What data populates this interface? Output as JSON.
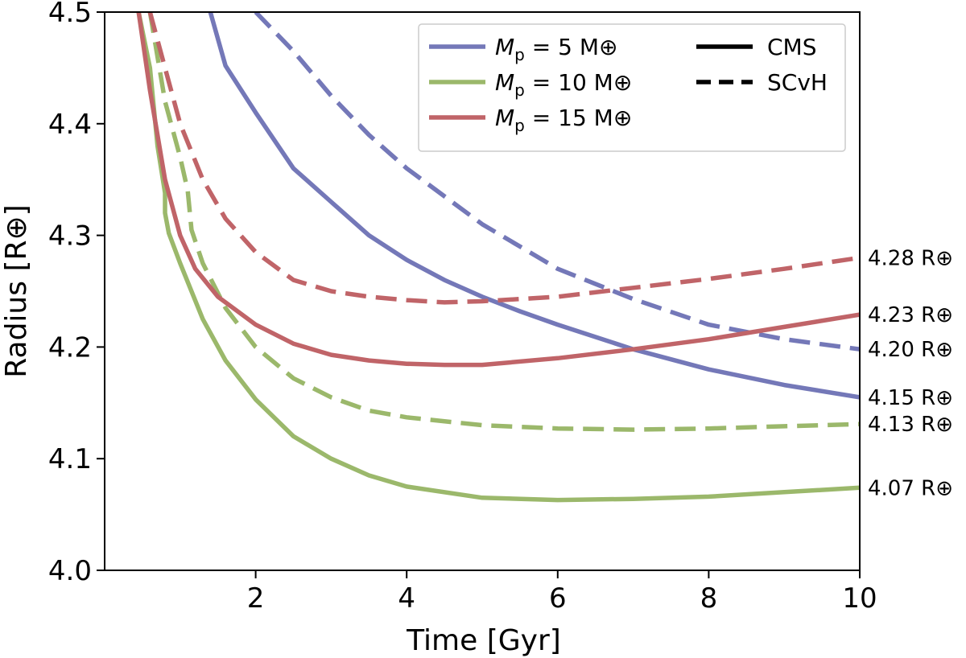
{
  "chart_data": {
    "type": "line",
    "title": "",
    "xlabel": "Time [Gyr]",
    "ylabel": "Radius [R⊕]",
    "xlim": [
      0,
      10
    ],
    "ylim": [
      4.0,
      4.5
    ],
    "xticks": [
      2,
      4,
      6,
      8,
      10
    ],
    "xtick_labels": [
      "2",
      "4",
      "6",
      "8",
      "10"
    ],
    "yticks": [
      4.0,
      4.1,
      4.2,
      4.3,
      4.4,
      4.5
    ],
    "ytick_labels": [
      "4.0",
      "4.1",
      "4.2",
      "4.3",
      "4.4",
      "4.5"
    ],
    "grid": false,
    "legend": {
      "placement": "top-right",
      "mass_entries": [
        {
          "prefix": "M",
          "subscript": "p",
          "text": " = 5 M⊕",
          "color": "#7478b8"
        },
        {
          "prefix": "M",
          "subscript": "p",
          "text": " = 10 M⊕",
          "color": "#9bb86b"
        },
        {
          "prefix": "M",
          "subscript": "p",
          "text": " = 15 M⊕",
          "color": "#c06468"
        }
      ],
      "style_entries": [
        {
          "label": "CMS",
          "style": "solid"
        },
        {
          "label": "SCvH",
          "style": "dashed"
        }
      ]
    },
    "series": [
      {
        "name": "Mp = 5 M⊕, CMS",
        "color": "#7478b8",
        "style": "solid",
        "x": [
          1.4,
          1.6,
          2.0,
          2.5,
          3.0,
          3.5,
          4.0,
          4.5,
          5.0,
          5.5,
          6.0,
          7.0,
          8.0,
          9.0,
          10.0
        ],
        "y": [
          4.5,
          4.452,
          4.41,
          4.36,
          4.33,
          4.3,
          4.278,
          4.26,
          4.245,
          4.232,
          4.22,
          4.198,
          4.18,
          4.166,
          4.155
        ],
        "end_label": "4.15 R⊕"
      },
      {
        "name": "Mp = 5 M⊕, SCvH",
        "color": "#7478b8",
        "style": "dashed",
        "x": [
          2.0,
          2.5,
          3.0,
          3.5,
          4.0,
          5.0,
          6.0,
          7.0,
          8.0,
          9.0,
          10.0
        ],
        "y": [
          4.5,
          4.465,
          4.425,
          4.39,
          4.36,
          4.31,
          4.27,
          4.243,
          4.22,
          4.207,
          4.198
        ],
        "end_label": "4.20 R⊕"
      },
      {
        "name": "Mp = 10 M⊕, CMS",
        "color": "#9bb86b",
        "style": "solid",
        "x": [
          0.45,
          0.6,
          0.7,
          0.8,
          0.8,
          0.85,
          1.0,
          1.3,
          1.6,
          2.0,
          2.5,
          3.0,
          3.5,
          4.0,
          5.0,
          6.0,
          7.0,
          8.0,
          9.0,
          10.0
        ],
        "y": [
          4.5,
          4.45,
          4.38,
          4.338,
          4.32,
          4.302,
          4.275,
          4.225,
          4.188,
          4.153,
          4.12,
          4.1,
          4.085,
          4.075,
          4.065,
          4.063,
          4.064,
          4.066,
          4.07,
          4.074
        ],
        "end_label": "4.07 R⊕"
      },
      {
        "name": "Mp = 10 M⊕, SCvH",
        "color": "#9bb86b",
        "style": "dashed",
        "x": [
          0.6,
          0.8,
          1.0,
          1.1,
          1.15,
          1.3,
          1.6,
          2.0,
          2.5,
          3.0,
          3.5,
          4.0,
          5.0,
          6.0,
          7.0,
          8.0,
          9.0,
          10.0
        ],
        "y": [
          4.5,
          4.42,
          4.37,
          4.34,
          4.305,
          4.275,
          4.235,
          4.2,
          4.172,
          4.155,
          4.143,
          4.137,
          4.13,
          4.127,
          4.126,
          4.127,
          4.129,
          4.131
        ],
        "end_label": "4.13 R⊕"
      },
      {
        "name": "Mp = 15 M⊕, CMS",
        "color": "#c06468",
        "style": "solid",
        "x": [
          0.45,
          0.6,
          0.8,
          1.0,
          1.2,
          1.5,
          2.0,
          2.5,
          3.0,
          3.5,
          4.0,
          4.5,
          5.0,
          6.0,
          7.0,
          8.0,
          9.0,
          10.0
        ],
        "y": [
          4.5,
          4.43,
          4.35,
          4.3,
          4.27,
          4.245,
          4.22,
          4.203,
          4.193,
          4.188,
          4.185,
          4.184,
          4.184,
          4.19,
          4.198,
          4.207,
          4.218,
          4.229
        ],
        "end_label": "4.23 R⊕"
      },
      {
        "name": "Mp = 15 M⊕, SCvH",
        "color": "#c06468",
        "style": "dashed",
        "x": [
          0.6,
          0.8,
          1.0,
          1.3,
          1.6,
          2.0,
          2.5,
          3.0,
          3.5,
          4.0,
          4.5,
          5.0,
          6.0,
          7.0,
          8.0,
          9.0,
          10.0
        ],
        "y": [
          4.5,
          4.45,
          4.4,
          4.35,
          4.315,
          4.285,
          4.26,
          4.25,
          4.245,
          4.242,
          4.24,
          4.241,
          4.245,
          4.253,
          4.261,
          4.27,
          4.28
        ],
        "end_label": "4.28 R⊕"
      }
    ]
  }
}
